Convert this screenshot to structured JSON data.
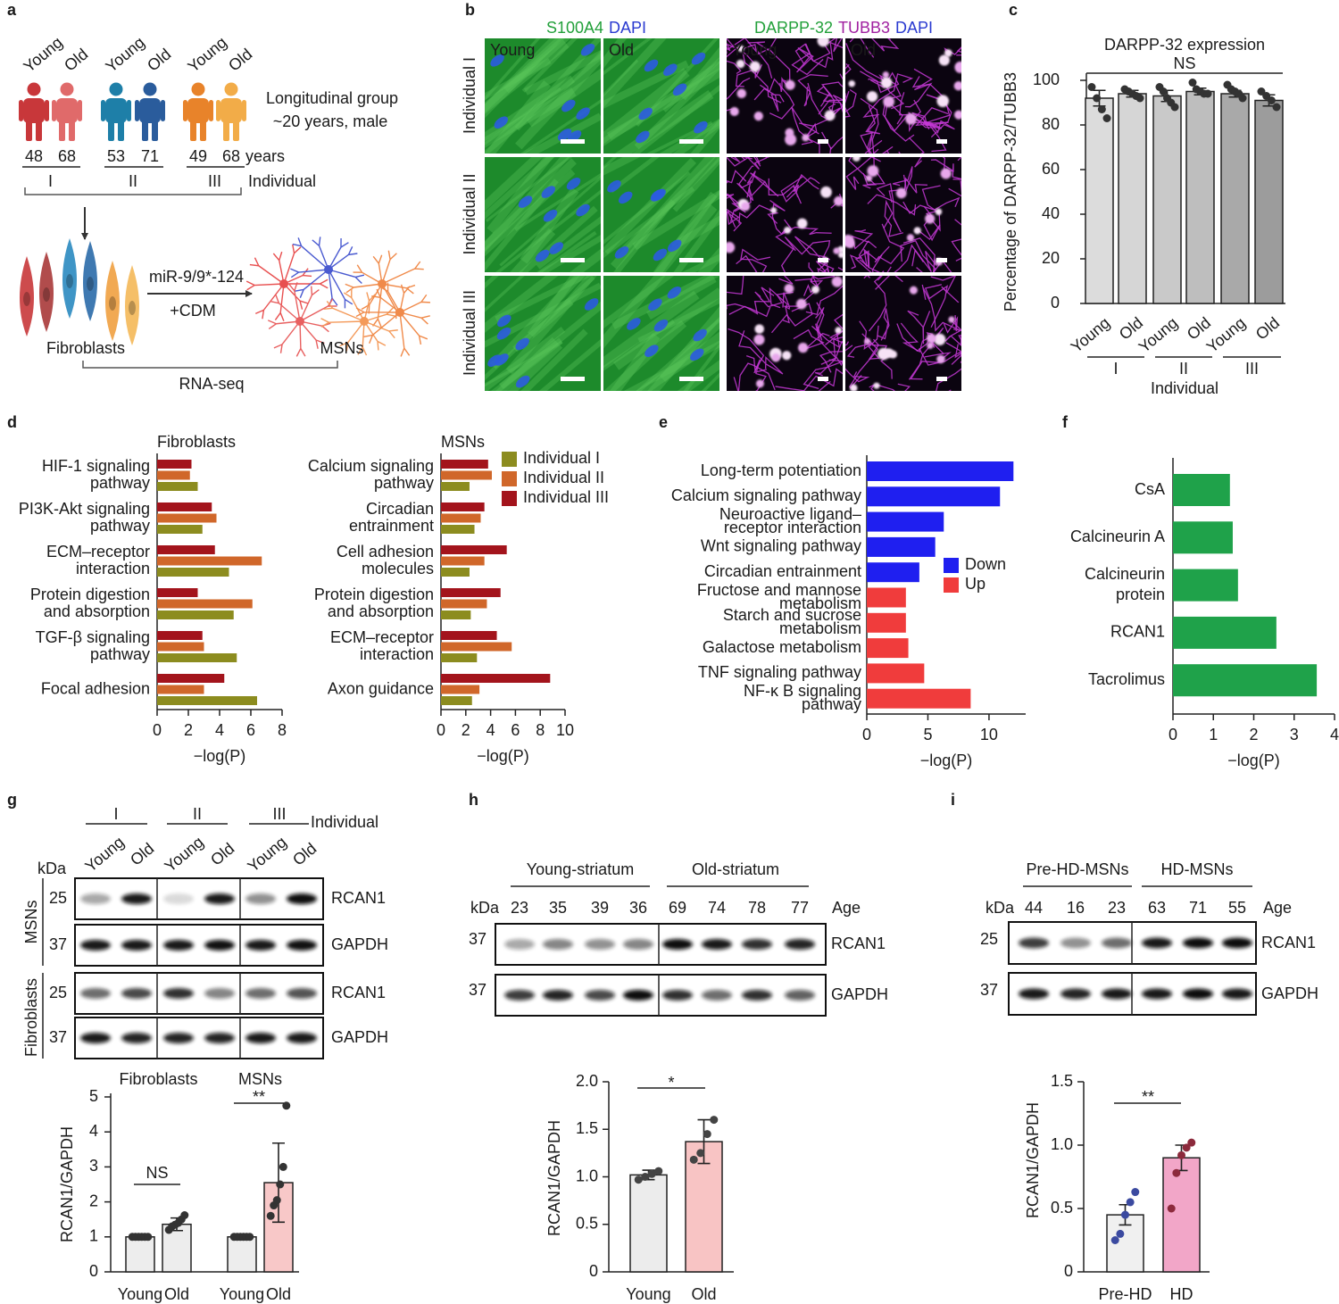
{
  "panel_labels": [
    "a",
    "b",
    "c",
    "d",
    "e",
    "f",
    "g",
    "h",
    "i"
  ],
  "panel_a": {
    "groups": [
      {
        "labels": [
          "Young",
          "Old"
        ],
        "ages": [
          48,
          68
        ],
        "individual": "I"
      },
      {
        "labels": [
          "Young",
          "Old"
        ],
        "ages": [
          53,
          71
        ],
        "individual": "II"
      },
      {
        "labels": [
          "Young",
          "Old"
        ],
        "ages": [
          49,
          68
        ],
        "individual": "III"
      }
    ],
    "age_unit": "years",
    "individual_label": "Individual",
    "cohort": [
      "Longitudinal group",
      "~20 years, male"
    ],
    "source": "Fibroblasts",
    "treatment": [
      "miR-9/9*-124",
      "+CDM"
    ],
    "target": "MSNs",
    "assay": "RNA-seq"
  },
  "panel_b": {
    "headers": [
      [
        "S100A4",
        "DAPI"
      ],
      [
        "DARPP-32",
        "TUBB3",
        "DAPI"
      ]
    ],
    "columns": [
      "Young",
      "Old",
      "Young",
      "Old"
    ],
    "rows": [
      "Individual I",
      "Individual II",
      "Individual III"
    ]
  },
  "blots": {
    "g": {
      "header_groups": [
        "I",
        "II",
        "III"
      ],
      "header_label": "Individual",
      "lanes": [
        "Young",
        "Old",
        "Young",
        "Old",
        "Young",
        "Old"
      ],
      "kda_label": "kDa",
      "rows": [
        {
          "kda": 25,
          "protein": "RCAN1"
        },
        {
          "kda": 37,
          "protein": "GAPDH"
        },
        {
          "kda": 25,
          "protein": "RCAN1"
        },
        {
          "kda": 37,
          "protein": "GAPDH"
        }
      ],
      "row_groups": [
        "MSNs",
        "Fibroblasts"
      ]
    },
    "h": {
      "header_groups": [
        "Young-striatum",
        "Old-striatum"
      ],
      "kda_label": "kDa",
      "ages": [
        23,
        35,
        39,
        36,
        69,
        74,
        78,
        77
      ],
      "age_label": "Age",
      "rows": [
        {
          "kda": 37,
          "protein": "RCAN1"
        },
        {
          "kda": 37,
          "protein": "GAPDH"
        }
      ]
    },
    "i": {
      "header_groups": [
        "Pre-HD-MSNs",
        "HD-MSNs"
      ],
      "kda_label": "kDa",
      "ages": [
        44,
        16,
        23,
        63,
        71,
        55
      ],
      "age_label": "Age",
      "rows": [
        {
          "kda": 25,
          "protein": "RCAN1"
        },
        {
          "kda": 37,
          "protein": "GAPDH"
        }
      ]
    }
  },
  "chart_data": [
    {
      "type": "bar",
      "title": "DARPP-32 expression",
      "annotations": [
        "NS"
      ],
      "y_label": "Percentage of DARPP-32/TUBB3",
      "x_label": "Individual",
      "categories": [
        "Young",
        "Old",
        "Young",
        "Old",
        "Young",
        "Old"
      ],
      "groups": [
        "I",
        "II",
        "III"
      ],
      "values": [
        92,
        94,
        93,
        95,
        94,
        91
      ],
      "errors": [
        3.5,
        1.5,
        2.5,
        1.5,
        1.5,
        2.5
      ],
      "points": [
        [
          97,
          92,
          87,
          83
        ],
        [
          96,
          95,
          94,
          93,
          92
        ],
        [
          97,
          95,
          92,
          90,
          88
        ],
        [
          99,
          96,
          95,
          94,
          94
        ],
        [
          98,
          96,
          95,
          94,
          92
        ],
        [
          95,
          93,
          91,
          88
        ]
      ],
      "colors": [
        "#dcdcdc",
        "#d6d6d6",
        "#c9c9c9",
        "#bebebe",
        "#a9a9a9",
        "#9c9c9c"
      ],
      "point_colors": [
        "#333333",
        "#333333",
        "#333333",
        "#333333",
        "#333333",
        "#333333"
      ],
      "ylim": [
        0,
        100
      ],
      "yticks": [
        0,
        20,
        40,
        60,
        80,
        100
      ]
    },
    {
      "type": "barh",
      "x_label": "−log(P)",
      "legend": true,
      "series": [
        {
          "name": "Individual I",
          "color": "#8c8c1f"
        },
        {
          "name": "Individual II",
          "color": "#d0672a"
        },
        {
          "name": "Individual III",
          "color": "#a3141c"
        }
      ],
      "panels": [
        {
          "title": "Fibroblasts",
          "categories": [
            [
              "HIF-1 signaling",
              "pathway"
            ],
            [
              "PI3K-Akt signaling",
              "pathway"
            ],
            [
              "ECM–receptor",
              "interaction"
            ],
            [
              "Protein digestion",
              "and absorption"
            ],
            [
              "TGF-β signaling",
              "pathway"
            ],
            "Focal adhesion"
          ],
          "values": [
            [
              2.6,
              2.9,
              4.6,
              4.9,
              5.1,
              6.4
            ],
            [
              2.1,
              3.8,
              6.7,
              6.1,
              3.0,
              3.0
            ],
            [
              2.2,
              3.5,
              3.7,
              2.6,
              2.9,
              4.3
            ]
          ],
          "xlim": [
            0,
            8
          ],
          "xticks": [
            0,
            2,
            4,
            6,
            8
          ]
        },
        {
          "title": "MSNs",
          "categories": [
            [
              "Calcium signaling",
              "pathway"
            ],
            [
              "Circadian",
              "entrainment"
            ],
            [
              "Cell adhesion",
              "molecules"
            ],
            [
              "Protein digestion",
              "and absorption"
            ],
            [
              "ECM–receptor",
              "interaction"
            ],
            "Axon guidance"
          ],
          "values": [
            [
              2.3,
              2.7,
              2.3,
              2.4,
              2.9,
              2.5
            ],
            [
              4.1,
              3.2,
              3.5,
              3.7,
              5.7,
              3.1
            ],
            [
              3.8,
              3.5,
              5.3,
              4.8,
              4.5,
              8.8
            ]
          ],
          "xlim": [
            0,
            10
          ],
          "xticks": [
            0,
            2,
            4,
            6,
            8,
            10
          ]
        }
      ]
    },
    {
      "type": "barh",
      "x_label": "−log(P)",
      "legend": true,
      "categories": [
        "Long-term potentiation",
        "Calcium signaling pathway",
        [
          "Neuroactive ligand–",
          "receptor interaction"
        ],
        "Wnt signaling pathway",
        "Circadian entrainment",
        [
          "Fructose and mannose",
          "metabolism"
        ],
        [
          "Starch and sucrose",
          "metabolism"
        ],
        "Galactose metabolism",
        "TNF signaling pathway",
        [
          "NF-κ B signaling",
          "pathway"
        ]
      ],
      "series": [
        {
          "name": "Down",
          "color": "#1f1ff0",
          "values": [
            12.0,
            10.9,
            6.3,
            5.6,
            4.3,
            null,
            null,
            null,
            null,
            null
          ]
        },
        {
          "name": "Up",
          "color": "#f03c3c",
          "values": [
            null,
            null,
            null,
            null,
            null,
            3.2,
            3.2,
            3.4,
            4.7,
            8.5
          ]
        }
      ],
      "xlim": [
        0,
        13
      ],
      "xticks": [
        0,
        5,
        10
      ]
    },
    {
      "type": "barh",
      "x_label": "−log(P)",
      "categories": [
        "CsA",
        "Calcineurin A",
        [
          "Calcineurin",
          "protein"
        ],
        "RCAN1",
        "Tacrolimus"
      ],
      "values": [
        1.41,
        1.48,
        1.61,
        2.56,
        3.56
      ],
      "color": "#1fa24a",
      "xlim": [
        0,
        4
      ],
      "xticks": [
        0,
        1,
        2,
        3,
        4
      ]
    },
    {
      "type": "bar",
      "y_label": "RCAN1/GAPDH",
      "groups": [
        "Fibroblasts",
        "MSNs"
      ],
      "annotations": [
        "NS",
        "**"
      ],
      "categories": [
        "Young",
        "Old",
        "Young",
        "Old"
      ],
      "values": [
        1,
        1.36,
        1,
        2.55
      ],
      "errors": [
        0,
        0.18,
        0,
        1.13
      ],
      "points": [
        [
          1,
          1,
          1,
          1,
          1,
          1
        ],
        [
          1.2,
          1.3,
          1.35,
          1.4,
          1.5,
          1.62
        ],
        [
          1,
          1,
          1,
          1,
          1,
          1
        ],
        [
          1.6,
          1.9,
          2.05,
          2.5,
          3.0,
          4.75
        ]
      ],
      "colors": [
        "#ededed",
        "#ededed",
        "#ededed",
        "#f8c8c8"
      ],
      "point_colors": [
        "#333333",
        "#333333",
        "#333333",
        "#333333"
      ],
      "ylim": [
        0,
        5
      ],
      "yticks": [
        0,
        1,
        2,
        3,
        4,
        5
      ]
    },
    {
      "type": "bar",
      "y_label": "RCAN1/GAPDH",
      "annotations": [
        "*"
      ],
      "categories": [
        "Young",
        "Old"
      ],
      "values": [
        1.02,
        1.37
      ],
      "errors": [
        0.05,
        0.23
      ],
      "points": [
        [
          0.97,
          1.0,
          1.03,
          1.06
        ],
        [
          1.18,
          1.25,
          1.45,
          1.6
        ]
      ],
      "colors": [
        "#ececec",
        "#f8c4c4"
      ],
      "point_colors": [
        "#444444",
        "#444444"
      ],
      "ylim": [
        0,
        2
      ],
      "yticks": [
        0,
        0.5,
        {
          "value": 1,
          "label": "1.0"
        },
        1.5,
        {
          "value": 2,
          "label": "2.0"
        }
      ]
    },
    {
      "type": "bar",
      "y_label": "RCAN1/GAPDH",
      "annotations": [
        "**"
      ],
      "categories": [
        "Pre-HD",
        "HD"
      ],
      "values": [
        0.45,
        0.9
      ],
      "errors": [
        0.08,
        0.1
      ],
      "points": [
        [
          0.25,
          0.3,
          0.45,
          0.55,
          0.63
        ],
        [
          0.5,
          0.78,
          0.92,
          0.98,
          1.02
        ]
      ],
      "colors": [
        "#f0f0f0",
        "#f2a6c8"
      ],
      "point_colors": [
        "#3b4aa0",
        "#8c2a3c"
      ],
      "ylim": [
        0,
        1.5
      ],
      "yticks": [
        0,
        0.5,
        {
          "value": 1,
          "label": "1.0"
        },
        1.5
      ]
    }
  ]
}
